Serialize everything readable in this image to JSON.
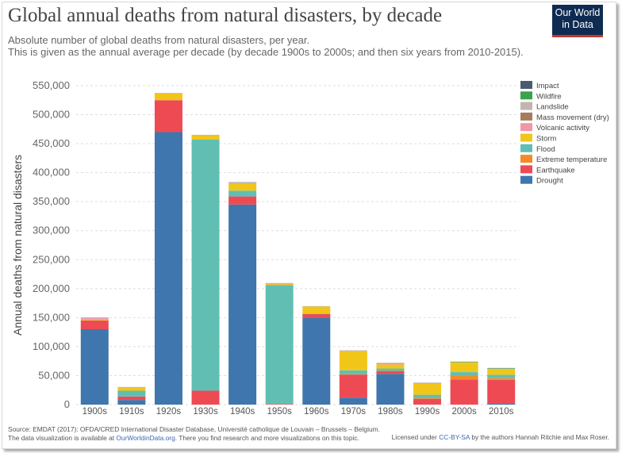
{
  "title": "Global annual deaths from natural disasters, by decade",
  "subtitle_lines": [
    "Absolute number of global deaths from natural disasters, per year.",
    "This is given as the annual average per decade (by decade 1900s to 2000s; and then six years from 2010-2015)."
  ],
  "logo_lines": [
    "Our World",
    "in Data"
  ],
  "footer": {
    "source": "Source: EMDAT (2017): OFDA/CRED International Disaster Database, Université catholique de Louvain – Brussels – Belgium.",
    "availability_prefix": "The data visualization is available at ",
    "availability_link": "OurWorldinData.org",
    "availability_suffix": ". There you find research and more visualizations on this topic.",
    "license_prefix": "Licensed under ",
    "license_link": "CC-BY-SA",
    "license_suffix": " by the authors Hannah Ritchie and Max Roser."
  },
  "colors": {
    "Impact": "#4b5b6e",
    "Wildfire": "#3aa24a",
    "Landslide": "#c2b5b0",
    "Mass movement (dry)": "#a87a5e",
    "Volcanic activity": "#f197a8",
    "Storm": "#f2c619",
    "Flood": "#60bfb2",
    "Extreme temperature": "#f48a27",
    "Earthquake": "#ee4a54",
    "Drought": "#3f76ad"
  },
  "chart_data": {
    "type": "bar",
    "stacked": true,
    "title": "Global annual deaths from natural disasters, by decade",
    "ylabel": "Annual deaths from natural disasters",
    "xlabel": "",
    "ylim": [
      0,
      550000
    ],
    "yticks": [
      0,
      50000,
      100000,
      150000,
      200000,
      250000,
      300000,
      350000,
      400000,
      450000,
      500000,
      550000
    ],
    "ytick_labels": [
      "0",
      "50,000",
      "100,000",
      "150,000",
      "200,000",
      "250,000",
      "300,000",
      "350,000",
      "400,000",
      "450,000",
      "500,000",
      "550,000"
    ],
    "grid": true,
    "legend_position": "top-right",
    "legend_order": [
      "Impact",
      "Wildfire",
      "Landslide",
      "Mass movement (dry)",
      "Volcanic activity",
      "Storm",
      "Flood",
      "Extreme temperature",
      "Earthquake",
      "Drought"
    ],
    "categories": [
      "1900s",
      "1910s",
      "1920s",
      "1930s",
      "1940s",
      "1950s",
      "1960s",
      "1970s",
      "1980s",
      "1990s",
      "2000s",
      "2010s"
    ],
    "series": [
      {
        "name": "Drought",
        "values": [
          130000,
          8000,
          470000,
          0,
          345000,
          0,
          150000,
          12000,
          53000,
          0,
          0,
          2500
        ]
      },
      {
        "name": "Earthquake",
        "values": [
          15000,
          6000,
          55000,
          24000,
          14000,
          1000,
          6000,
          40000,
          5000,
          10000,
          43000,
          40000
        ]
      },
      {
        "name": "Extreme temperature",
        "values": [
          0,
          0,
          0,
          0,
          0,
          0,
          0,
          200,
          200,
          1000,
          7000,
          3000
        ]
      },
      {
        "name": "Flood",
        "values": [
          0,
          10000,
          0,
          433000,
          10000,
          205000,
          1000,
          7000,
          4000,
          6000,
          6000,
          6000
        ]
      },
      {
        "name": "Storm",
        "values": [
          1000,
          6000,
          12000,
          8000,
          12000,
          2000,
          12000,
          33000,
          7000,
          20000,
          17000,
          10000
        ]
      },
      {
        "name": "Volcanic activity",
        "values": [
          3000,
          0,
          0,
          0,
          0,
          500,
          0,
          0,
          2000,
          100,
          0,
          0
        ]
      },
      {
        "name": "Mass movement (dry)",
        "values": [
          0,
          0,
          0,
          0,
          0,
          0,
          0,
          0,
          0,
          0,
          0,
          0
        ]
      },
      {
        "name": "Landslide",
        "values": [
          1500,
          500,
          500,
          300,
          3000,
          1200,
          800,
          1500,
          1000,
          1000,
          1000,
          1500
        ]
      },
      {
        "name": "Wildfire",
        "values": [
          0,
          0,
          0,
          0,
          0,
          0,
          0,
          0,
          0,
          0,
          100,
          100
        ]
      },
      {
        "name": "Impact",
        "values": [
          0,
          0,
          0,
          0,
          0,
          0,
          0,
          0,
          0,
          0,
          0,
          0
        ]
      }
    ]
  }
}
